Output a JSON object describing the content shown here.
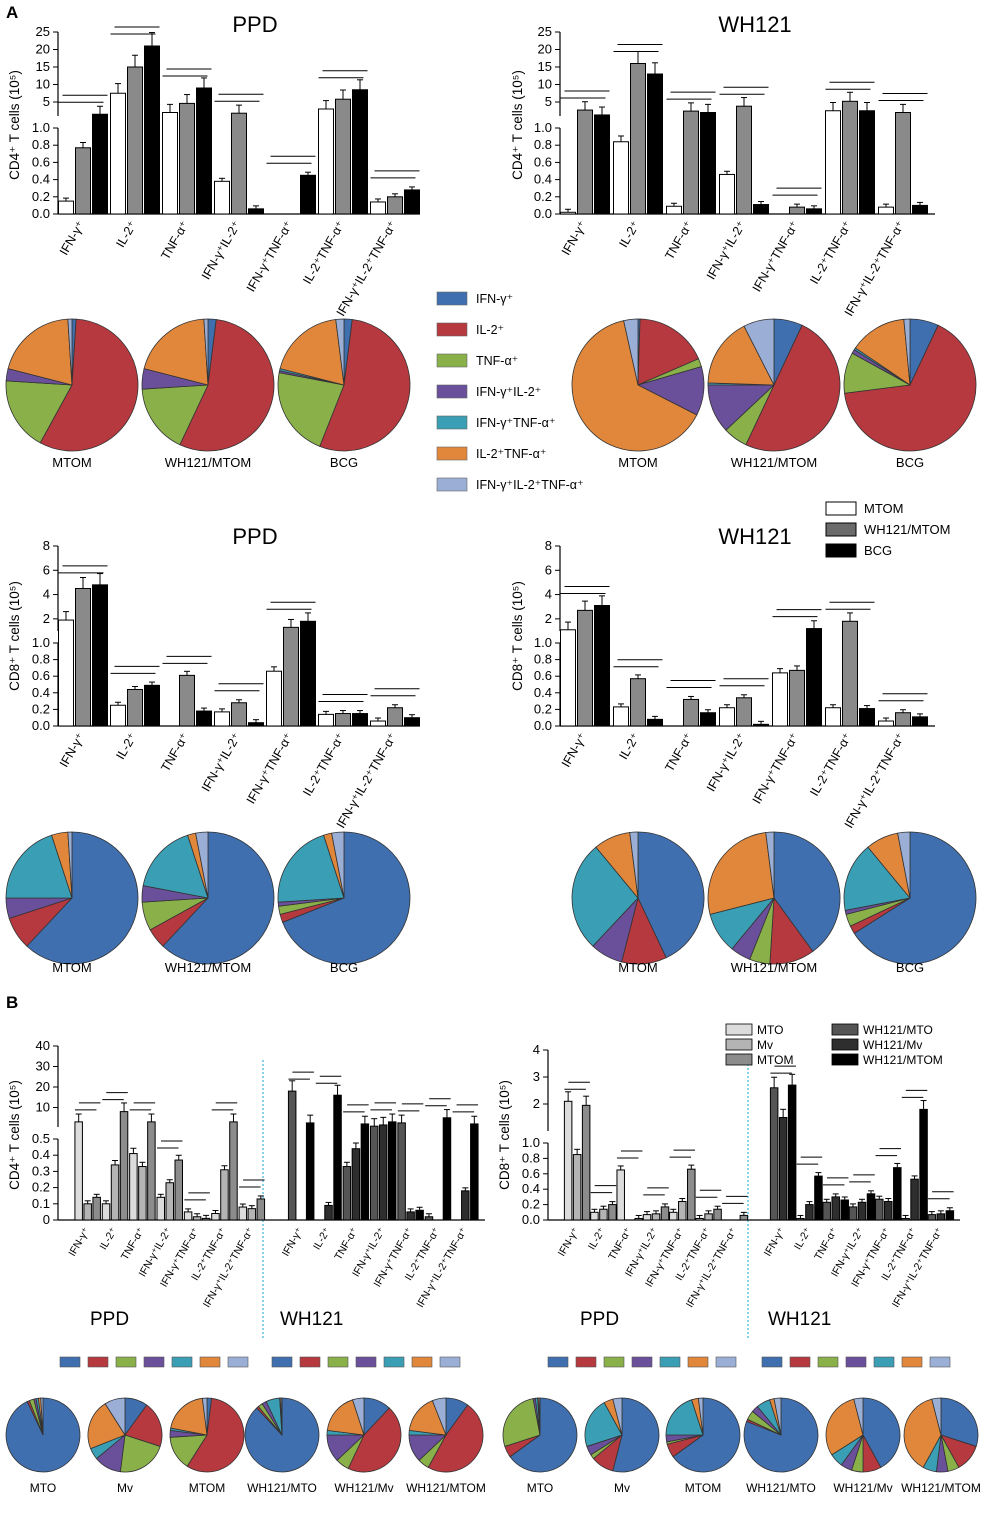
{
  "panels": {
    "A": "A",
    "B": "B"
  },
  "colors": {
    "ifng": "#3f6fae",
    "il2": "#b5393e",
    "tnfa": "#8ab04a",
    "ifng_il2": "#6a4f9a",
    "ifng_tnfa": "#3a9fb4",
    "il2_tnfa": "#e0873b",
    "triple": "#9aaed6"
  },
  "legend_categories": [
    {
      "key": "ifng",
      "label": "IFN-γ⁺"
    },
    {
      "key": "il2",
      "label": "IL-2⁺"
    },
    {
      "key": "tnfa",
      "label": "TNF-α⁺"
    },
    {
      "key": "ifng_il2",
      "label": "IFN-γ⁺IL-2⁺"
    },
    {
      "key": "ifng_tnfa",
      "label": "IFN-γ⁺TNF-α⁺"
    },
    {
      "key": "il2_tnfa",
      "label": "IL-2⁺TNF-α⁺"
    },
    {
      "key": "triple",
      "label": "IFN-γ⁺IL-2⁺TNF-α⁺"
    }
  ],
  "groupLegendA": [
    {
      "label": "MTOM",
      "color": "#ffffff"
    },
    {
      "label": "WH121/MTOM",
      "color": "#6b6b6b"
    },
    {
      "label": "BCG",
      "color": "#000000"
    }
  ],
  "groupLegendB": [
    {
      "label": "MTO",
      "color": "#dcdcdc"
    },
    {
      "label": "Mv",
      "color": "#b4b4b4"
    },
    {
      "label": "MTOM",
      "color": "#8c8c8c"
    },
    {
      "label": "WH121/MTO",
      "color": "#555555"
    },
    {
      "label": "WH121/Mv",
      "color": "#2e2e2e"
    },
    {
      "label": "WH121/MTOM",
      "color": "#000000"
    }
  ],
  "chart_data": [
    {
      "id": "A-CD4-PPD",
      "type": "bar",
      "title": "PPD",
      "ylabel": "CD4⁺ T cells (10⁵)",
      "categories": [
        "IFN-γ⁺",
        "IL-2⁺",
        "TNF-α⁺",
        "IFN-γ⁺IL-2⁺",
        "IFN-γ⁺TNF-α⁺",
        "IL-2⁺TNF-α⁺",
        "IFN-γ⁺IL-2⁺TNF-α⁺"
      ],
      "axis_break": {
        "lower": [
          0,
          1.0
        ],
        "upper": [
          1,
          25
        ],
        "lower_ticks": [
          "0.0",
          "0.2",
          "0.4",
          "0.6",
          "0.8",
          "1.0"
        ],
        "upper_ticks": [
          "5",
          "10",
          "15",
          "20",
          "25"
        ]
      },
      "series": [
        {
          "name": "MTOM",
          "values": [
            0.15,
            7.5,
            2.0,
            0.38,
            0.0,
            3.0,
            0.14
          ]
        },
        {
          "name": "WH121/MTOM",
          "values": [
            0.77,
            15.0,
            4.6,
            1.8,
            0.0,
            5.8,
            0.2
          ]
        },
        {
          "name": "BCG",
          "values": [
            1.5,
            21.0,
            9.0,
            0.06,
            0.45,
            8.5,
            0.28
          ]
        }
      ]
    },
    {
      "id": "A-CD4-WH121",
      "type": "bar",
      "title": "WH121",
      "ylabel": "CD4⁺ T cells (10⁵)",
      "categories": [
        "IFN-γ⁺",
        "IL-2⁺",
        "TNF-α⁺",
        "IFN-γ⁺IL-2⁺",
        "IFN-γ⁺TNF-α⁺",
        "IL-2⁺TNF-α⁺",
        "IFN-γ⁺IL-2⁺TNF-α⁺"
      ],
      "axis_break": {
        "lower": [
          0,
          1.0
        ],
        "upper": [
          1,
          25
        ],
        "lower_ticks": [
          "0.0",
          "0.2",
          "0.4",
          "0.6",
          "0.8",
          "1.0"
        ],
        "upper_ticks": [
          "5",
          "10",
          "15",
          "20",
          "25"
        ]
      },
      "series": [
        {
          "name": "MTOM",
          "values": [
            0.02,
            0.84,
            0.09,
            0.46,
            0.0,
            2.5,
            0.08
          ]
        },
        {
          "name": "WH121/MTOM",
          "values": [
            2.7,
            16.0,
            2.4,
            3.8,
            0.08,
            5.2,
            2.0
          ]
        },
        {
          "name": "BCG",
          "values": [
            1.3,
            13.0,
            2.0,
            0.11,
            0.06,
            2.5,
            0.1
          ]
        }
      ]
    },
    {
      "id": "A-CD8-PPD",
      "type": "bar",
      "title": "PPD",
      "ylabel": "CD8⁺ T cells (10⁵)",
      "categories": [
        "IFN-γ⁺",
        "IL-2⁺",
        "TNF-α⁺",
        "IFN-γ⁺IL-2⁺",
        "IFN-γ⁺TNF-α⁺",
        "IL-2⁺TNF-α⁺",
        "IFN-γ⁺IL-2⁺TNF-α⁺"
      ],
      "axis_break": {
        "lower": [
          0,
          1.0
        ],
        "upper": [
          1,
          8
        ],
        "lower_ticks": [
          "0.0",
          "0.2",
          "0.4",
          "0.6",
          "0.8",
          "1.0"
        ],
        "upper_ticks": [
          "2",
          "4",
          "6",
          "8"
        ]
      },
      "series": [
        {
          "name": "MTOM",
          "values": [
            1.9,
            0.25,
            0.0,
            0.17,
            0.66,
            0.14,
            0.06
          ]
        },
        {
          "name": "WH121/MTOM",
          "values": [
            4.5,
            0.44,
            0.61,
            0.28,
            1.3,
            0.15,
            0.22
          ]
        },
        {
          "name": "BCG",
          "values": [
            4.8,
            0.49,
            0.18,
            0.04,
            1.8,
            0.15,
            0.1
          ]
        }
      ]
    },
    {
      "id": "A-CD8-WH121",
      "type": "bar",
      "title": "WH121",
      "ylabel": "CD8⁺ T cells (10⁵)",
      "categories": [
        "IFN-γ⁺",
        "IL-2⁺",
        "TNF-α⁺",
        "IFN-γ⁺IL-2⁺",
        "IFN-γ⁺TNF-α⁺",
        "IL-2⁺TNF-α⁺",
        "IFN-γ⁺IL-2⁺TNF-α⁺"
      ],
      "axis_break": {
        "lower": [
          0,
          1.0
        ],
        "upper": [
          1,
          8
        ],
        "lower_ticks": [
          "0.0",
          "0.2",
          "0.4",
          "0.6",
          "0.8",
          "1.0"
        ],
        "upper_ticks": [
          "2",
          "4",
          "6",
          "8"
        ]
      },
      "series": [
        {
          "name": "MTOM",
          "values": [
            1.1,
            0.23,
            0.0,
            0.22,
            0.64,
            0.22,
            0.06
          ]
        },
        {
          "name": "WH121/MTOM",
          "values": [
            2.7,
            0.57,
            0.32,
            0.34,
            0.67,
            1.8,
            0.16
          ]
        },
        {
          "name": "BCG",
          "values": [
            3.1,
            0.08,
            0.16,
            0.02,
            1.2,
            0.21,
            0.11
          ]
        }
      ]
    },
    {
      "id": "B-CD4",
      "type": "bar",
      "ylabel": "CD4⁺ T cells (10⁵)",
      "groups": [
        "PPD",
        "WH121"
      ],
      "categories": [
        "IFN-γ⁺",
        "IL-2⁺",
        "TNF-α⁺",
        "IFN-γ⁺IL-2⁺",
        "IFN-γ⁺TNF-α⁺",
        "IL-2⁺TNF-α⁺",
        "IFN-γ⁺IL-2⁺TNF-α⁺"
      ],
      "axis_break": {
        "lower": [
          0,
          0.5
        ],
        "upper": [
          0.5,
          40
        ],
        "lower_ticks": [
          "0",
          "0.1",
          "0.2",
          "0.3",
          "0.4",
          "0.5"
        ],
        "upper_ticks": [
          "10",
          "20",
          "30",
          "40"
        ]
      },
      "series": [
        {
          "name": "MTO",
          "values": [
            3.0,
            0.1,
            0.41,
            0.14,
            0.05,
            0.04,
            0.08
          ]
        },
        {
          "name": "Mv",
          "values": [
            0.1,
            0.34,
            0.33,
            0.23,
            0.02,
            0.31,
            0.07
          ]
        },
        {
          "name": "MTOM",
          "values": [
            0.14,
            8.0,
            3.0,
            0.37,
            0.01,
            3.0,
            0.13
          ]
        },
        {
          "name": "WH121/MTO",
          "values": [
            18.0,
            0.0,
            0.33,
            0.9,
            2.5,
            0.02,
            0.0
          ]
        },
        {
          "name": "WH121/Mv",
          "values": [
            0.0,
            0.09,
            0.44,
            1.5,
            0.05,
            0.0,
            0.18
          ]
        },
        {
          "name": "WH121/MTOM",
          "values": [
            2.5,
            16.0,
            2.0,
            3.0,
            0.06,
            5.0,
            2.0
          ]
        }
      ]
    },
    {
      "id": "B-CD8",
      "type": "bar",
      "ylabel": "CD8⁺ T cells (10⁵)",
      "groups": [
        "PPD",
        "WH121"
      ],
      "categories": [
        "IFN-γ⁺",
        "IL-2⁺",
        "TNF-α⁺",
        "IFN-γ⁺IL-2⁺",
        "IFN-γ⁺TNF-α⁺",
        "IL-2⁺TNF-α⁺",
        "IFN-γ⁺IL-2⁺TNF-α⁺"
      ],
      "axis_break": {
        "lower": [
          0,
          1.0
        ],
        "upper": [
          1,
          4
        ],
        "lower_ticks": [
          "0.0",
          "0.2",
          "0.4",
          "0.6",
          "0.8",
          "1.0"
        ],
        "upper_ticks": [
          "2",
          "3",
          "4"
        ]
      },
      "series": [
        {
          "name": "MTO",
          "values": [
            2.1,
            0.1,
            0.65,
            0.07,
            0.1,
            0.02,
            0.0
          ]
        },
        {
          "name": "Mv",
          "values": [
            0.85,
            0.14,
            0.0,
            0.08,
            0.24,
            0.08,
            0.0
          ]
        },
        {
          "name": "MTOM",
          "values": [
            1.95,
            0.2,
            0.02,
            0.17,
            0.66,
            0.14,
            0.06
          ]
        },
        {
          "name": "WH121/MTO",
          "values": [
            2.6,
            0.02,
            0.23,
            0.17,
            0.27,
            0.02,
            0.07
          ]
        },
        {
          "name": "WH121/Mv",
          "values": [
            1.5,
            0.2,
            0.3,
            0.23,
            0.24,
            0.53,
            0.08
          ]
        },
        {
          "name": "WH121/MTOM",
          "values": [
            2.7,
            0.57,
            0.26,
            0.34,
            0.68,
            1.8,
            0.12
          ]
        }
      ]
    },
    {
      "id": "pies",
      "type": "pie",
      "labels": [
        "IFN-γ⁺",
        "IL-2⁺",
        "TNF-α⁺",
        "IFN-γ⁺IL-2⁺",
        "IFN-γ⁺TNF-α⁺",
        "IL-2⁺TNF-α⁺",
        "IFN-γ⁺IL-2⁺TNF-α⁺"
      ],
      "groups": [
        {
          "row": "A-CD4-PPD",
          "pies": [
            {
              "name": "MTOM",
              "values": [
                1,
                57,
                18,
                3,
                0,
                20,
                1
              ]
            },
            {
              "name": "WH121/MTOM",
              "values": [
                2,
                55,
                17,
                5,
                0,
                20,
                1
              ]
            },
            {
              "name": "BCG",
              "values": [
                2,
                54,
                22,
                0.5,
                0.5,
                19,
                2
              ]
            }
          ]
        },
        {
          "row": "A-CD4-WH121",
          "pies": [
            {
              "name": "MTOM",
              "values": [
                0.5,
                18,
                2,
                12,
                0,
                64,
                3.5
              ]
            },
            {
              "name": "WH121/MTOM",
              "values": [
                7,
                50,
                6,
                12,
                0.5,
                17,
                7.5
              ]
            },
            {
              "name": "BCG",
              "values": [
                7,
                66,
                10,
                1,
                0.5,
                14,
                1.5
              ]
            }
          ]
        },
        {
          "row": "A-CD8-PPD",
          "pies": [
            {
              "name": "MTOM",
              "values": [
                62,
                8,
                0,
                5,
                20,
                4,
                1
              ]
            },
            {
              "name": "WH121/MTOM",
              "values": [
                62,
                5,
                7,
                4,
                17,
                2,
                3
              ]
            },
            {
              "name": "BCG",
              "values": [
                69,
                2,
                2,
                1,
                21,
                2,
                3
              ]
            }
          ]
        },
        {
          "row": "A-CD8-WH121",
          "pies": [
            {
              "name": "MTOM",
              "values": [
                43,
                11,
                0,
                8,
                27,
                9,
                2
              ]
            },
            {
              "name": "WH121/MTOM",
              "values": [
                40,
                11,
                5,
                5,
                10,
                27,
                2
              ]
            },
            {
              "name": "BCG",
              "values": [
                66,
                2,
                3,
                1,
                17,
                8,
                3
              ]
            }
          ]
        },
        {
          "row": "B-CD4",
          "pies": [
            {
              "name": "MTO",
              "values": [
                93,
                1,
                2,
                1,
                1,
                1,
                1
              ]
            },
            {
              "name": "Mv",
              "values": [
                10,
                20,
                22,
                12,
                5,
                22,
                9
              ]
            },
            {
              "name": "MTOM",
              "values": [
                2,
                57,
                15,
                3,
                1,
                20,
                2
              ]
            },
            {
              "name": "WH121/MTO",
              "values": [
                88,
                1,
                2,
                2,
                6,
                0.5,
                0.5
              ]
            },
            {
              "name": "WH121/Mv",
              "values": [
                12,
                45,
                6,
                12,
                2,
                18,
                5
              ]
            },
            {
              "name": "WH121/MTOM",
              "values": [
                10,
                48,
                5,
                12,
                2,
                17,
                6
              ]
            }
          ]
        },
        {
          "row": "B-CD8",
          "pies": [
            {
              "name": "MTO",
              "values": [
                65,
                5,
                27,
                1,
                1,
                0.5,
                0.5
              ]
            },
            {
              "name": "Mv",
              "values": [
                54,
                10,
                2,
                4,
                22,
                4,
                4
              ]
            },
            {
              "name": "MTOM",
              "values": [
                65,
                6,
                1,
                3,
                20,
                3,
                2
              ]
            },
            {
              "name": "WH121/MTO",
              "values": [
                81,
                1,
                4,
                3,
                6,
                2,
                3
              ]
            },
            {
              "name": "WH121/Mv",
              "values": [
                42,
                8,
                5,
                5,
                6,
                30,
                4
              ]
            },
            {
              "name": "WH121/MTOM",
              "values": [
                30,
                12,
                5,
                5,
                6,
                38,
                4
              ]
            }
          ]
        }
      ]
    }
  ]
}
